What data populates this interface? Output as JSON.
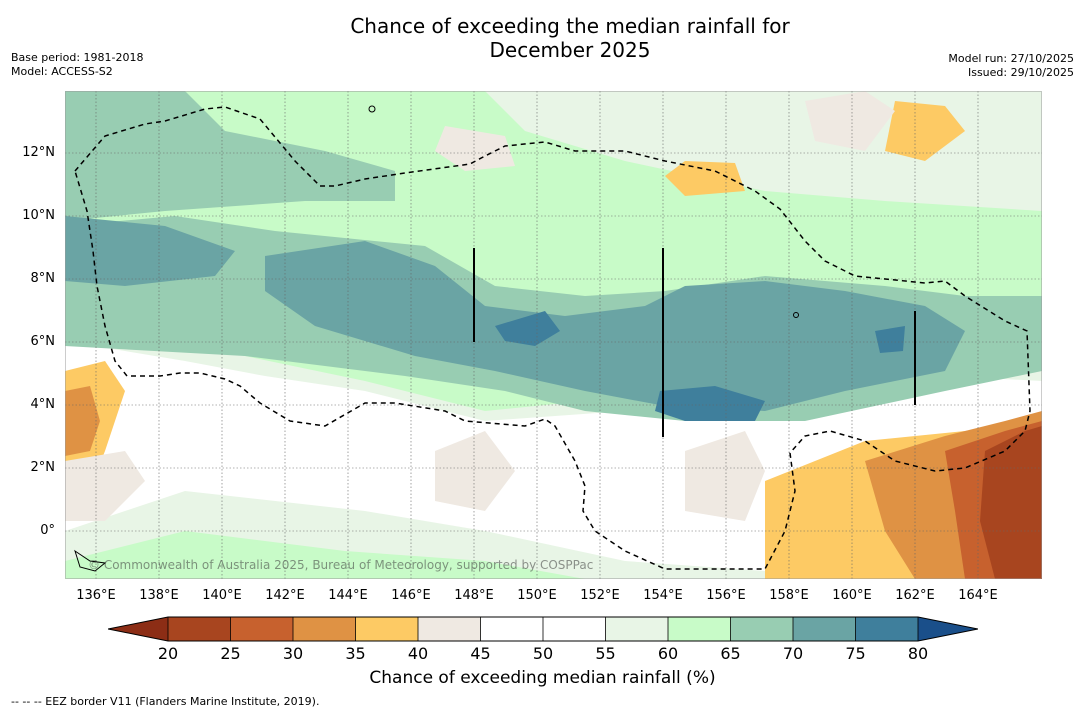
{
  "title": {
    "line1": "Chance of exceeding the median rainfall for",
    "line2": "December 2025"
  },
  "meta": {
    "base_period": "Base period: 1981-2018",
    "model": "Model: ACCESS-S2",
    "model_run": "Model run: 27/10/2025",
    "issued": "Issued: 29/10/2025"
  },
  "map": {
    "lat_labels": [
      "12°N",
      "10°N",
      "8°N",
      "6°N",
      "4°N",
      "2°N",
      "0°"
    ],
    "lon_labels": [
      "136°E",
      "138°E",
      "140°E",
      "142°E",
      "144°E",
      "146°E",
      "148°E",
      "150°E",
      "152°E",
      "154°E",
      "156°E",
      "158°E",
      "160°E",
      "162°E",
      "164°E"
    ],
    "copyright": "© Commonwealth of Australia 2025, Bureau of Meteorology, supported by COSPPac"
  },
  "colorbar": {
    "ticks": [
      "20",
      "25",
      "30",
      "35",
      "40",
      "45",
      "50",
      "55",
      "60",
      "65",
      "70",
      "75",
      "80"
    ],
    "colors": {
      "lt20": "#8c2d15",
      "c20": "#a8451f",
      "c25": "#c7612e",
      "c30": "#df9244",
      "c35": "#fdca64",
      "c40": "#efe9e2",
      "c45": "#ffffff",
      "c50": "#ffffff",
      "c55": "#e8f5e6",
      "c60": "#c8fbc8",
      "c65": "#98cdb2",
      "c70": "#6aa4a4",
      "c75": "#3f7f9c",
      "gt80": "#1a4f8a"
    },
    "label": "Chance of exceeding median rainfall (%)"
  },
  "footnote": "--  --  -- EEZ border V11 (Flanders Marine Institute, 2019)."
}
